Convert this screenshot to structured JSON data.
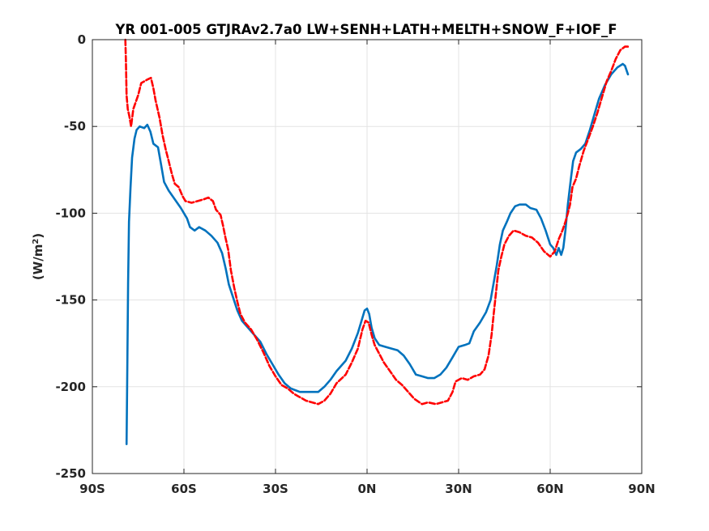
{
  "chart_data": {
    "type": "line",
    "title": "YR 001-005 GTJRAv2.7a0 LW+SENH+LATH+MELTH+SNOW_F+IOF_F",
    "xlabel": "",
    "ylabel_main": "(W/m",
    "ylabel_sup": "2",
    "ylabel_close": ")",
    "xlim": [
      -90,
      90
    ],
    "ylim": [
      -250,
      0
    ],
    "xticks": [
      -90,
      -60,
      -30,
      0,
      30,
      60,
      90
    ],
    "xtick_labels": [
      "90S",
      "60S",
      "30S",
      "0N",
      "30N",
      "60N",
      "90N"
    ],
    "yticks": [
      0,
      -50,
      -100,
      -150,
      -200,
      -250
    ],
    "ytick_labels": [
      "0",
      "-50",
      "-100",
      "-150",
      "-200",
      "-250"
    ],
    "grid": true,
    "series": [
      {
        "color": "#0072BD",
        "style": "solid",
        "points": [
          [
            -78.8,
            -233
          ],
          [
            -78.6,
            -200
          ],
          [
            -78.3,
            -140
          ],
          [
            -78.0,
            -105
          ],
          [
            -77.5,
            -85
          ],
          [
            -77.0,
            -68
          ],
          [
            -76.2,
            -57
          ],
          [
            -75.5,
            -52
          ],
          [
            -74.5,
            -50
          ],
          [
            -73.0,
            -51
          ],
          [
            -72.0,
            -49
          ],
          [
            -71.0,
            -53
          ],
          [
            -70.0,
            -60
          ],
          [
            -68.5,
            -62
          ],
          [
            -67.5,
            -72
          ],
          [
            -66.5,
            -82
          ],
          [
            -65,
            -87
          ],
          [
            -63,
            -92
          ],
          [
            -61,
            -97
          ],
          [
            -59,
            -103
          ],
          [
            -58,
            -108
          ],
          [
            -56.5,
            -110
          ],
          [
            -55,
            -108
          ],
          [
            -53,
            -110
          ],
          [
            -51,
            -113
          ],
          [
            -49,
            -117
          ],
          [
            -47.5,
            -123
          ],
          [
            -46.3,
            -132
          ],
          [
            -45.3,
            -141
          ],
          [
            -44,
            -148
          ],
          [
            -42.5,
            -156
          ],
          [
            -41,
            -162
          ],
          [
            -39,
            -166
          ],
          [
            -37,
            -170
          ],
          [
            -35,
            -174
          ],
          [
            -33,
            -181
          ],
          [
            -31,
            -187
          ],
          [
            -29,
            -193
          ],
          [
            -27,
            -198
          ],
          [
            -25,
            -201
          ],
          [
            -22,
            -203
          ],
          [
            -19,
            -203
          ],
          [
            -16,
            -203
          ],
          [
            -14,
            -200
          ],
          [
            -12,
            -196
          ],
          [
            -10,
            -191
          ],
          [
            -7,
            -185
          ],
          [
            -5,
            -178
          ],
          [
            -3,
            -169
          ],
          [
            -1.8,
            -162
          ],
          [
            -0.8,
            -156
          ],
          [
            0,
            -155
          ],
          [
            0.7,
            -158
          ],
          [
            1.5,
            -166
          ],
          [
            2.5,
            -172
          ],
          [
            4,
            -176
          ],
          [
            6,
            -177
          ],
          [
            8,
            -178
          ],
          [
            10,
            -179
          ],
          [
            12,
            -182
          ],
          [
            14,
            -187
          ],
          [
            16,
            -193
          ],
          [
            18,
            -194
          ],
          [
            20,
            -195
          ],
          [
            22,
            -195
          ],
          [
            24,
            -193
          ],
          [
            26,
            -189
          ],
          [
            28,
            -183
          ],
          [
            30,
            -177
          ],
          [
            32,
            -176
          ],
          [
            33.5,
            -175
          ],
          [
            35,
            -168
          ],
          [
            37,
            -163
          ],
          [
            39,
            -157
          ],
          [
            40.5,
            -150
          ],
          [
            41.5,
            -140
          ],
          [
            42.5,
            -130
          ],
          [
            43.5,
            -118
          ],
          [
            44.5,
            -110
          ],
          [
            45.8,
            -105
          ],
          [
            47,
            -100
          ],
          [
            48.5,
            -96
          ],
          [
            50,
            -95
          ],
          [
            52,
            -95
          ],
          [
            53.5,
            -97
          ],
          [
            55.5,
            -98
          ],
          [
            57,
            -103
          ],
          [
            58.5,
            -110
          ],
          [
            60,
            -118
          ],
          [
            61,
            -120
          ],
          [
            62,
            -124
          ],
          [
            62.8,
            -120
          ],
          [
            63.6,
            -124
          ],
          [
            64.3,
            -120
          ],
          [
            65,
            -110
          ],
          [
            65.8,
            -95
          ],
          [
            66.8,
            -80
          ],
          [
            67.5,
            -70
          ],
          [
            68.5,
            -65
          ],
          [
            70,
            -63
          ],
          [
            71.5,
            -60
          ],
          [
            73,
            -52
          ],
          [
            74.5,
            -43
          ],
          [
            76,
            -34
          ],
          [
            78,
            -26
          ],
          [
            80,
            -20
          ],
          [
            82,
            -16
          ],
          [
            83.8,
            -14
          ],
          [
            84.5,
            -15
          ],
          [
            85.5,
            -20
          ]
        ]
      },
      {
        "color": "#FF0000",
        "style": "dashed",
        "points": [
          [
            -79.2,
            0
          ],
          [
            -79.0,
            -12
          ],
          [
            -78.8,
            -32
          ],
          [
            -78.4,
            -40
          ],
          [
            -77.9,
            -44
          ],
          [
            -77.3,
            -50
          ],
          [
            -76.6,
            -40
          ],
          [
            -75.8,
            -36
          ],
          [
            -75.0,
            -32
          ],
          [
            -74.0,
            -25
          ],
          [
            -73.0,
            -24
          ],
          [
            -72.0,
            -23
          ],
          [
            -70.8,
            -22
          ],
          [
            -70.0,
            -28
          ],
          [
            -69.3,
            -35
          ],
          [
            -68.0,
            -45
          ],
          [
            -67.0,
            -55
          ],
          [
            -66.0,
            -63
          ],
          [
            -65.0,
            -70
          ],
          [
            -64.0,
            -77
          ],
          [
            -63.0,
            -83
          ],
          [
            -61.7,
            -85
          ],
          [
            -60.5,
            -90
          ],
          [
            -59.5,
            -93
          ],
          [
            -57.5,
            -94
          ],
          [
            -55.5,
            -93
          ],
          [
            -53.5,
            -92
          ],
          [
            -52,
            -91
          ],
          [
            -50.5,
            -93
          ],
          [
            -49.5,
            -98
          ],
          [
            -48.0,
            -101
          ],
          [
            -47.2,
            -107
          ],
          [
            -46.4,
            -114
          ],
          [
            -45.5,
            -121
          ],
          [
            -44.6,
            -133
          ],
          [
            -43.5,
            -143
          ],
          [
            -42.5,
            -151
          ],
          [
            -41.5,
            -158
          ],
          [
            -40,
            -163
          ],
          [
            -38,
            -167
          ],
          [
            -36,
            -173
          ],
          [
            -34,
            -180
          ],
          [
            -32,
            -188
          ],
          [
            -30,
            -194
          ],
          [
            -28,
            -199
          ],
          [
            -26,
            -201
          ],
          [
            -24,
            -204
          ],
          [
            -22,
            -206
          ],
          [
            -20,
            -208
          ],
          [
            -18,
            -209
          ],
          [
            -16,
            -210
          ],
          [
            -14,
            -208
          ],
          [
            -12,
            -204
          ],
          [
            -10,
            -198
          ],
          [
            -7,
            -193
          ],
          [
            -5,
            -186
          ],
          [
            -3,
            -178
          ],
          [
            -1.5,
            -167
          ],
          [
            -0.5,
            -162
          ],
          [
            0.5,
            -163
          ],
          [
            1.5,
            -170
          ],
          [
            2.5,
            -176
          ],
          [
            4,
            -181
          ],
          [
            5.5,
            -186
          ],
          [
            7.5,
            -191
          ],
          [
            9.5,
            -196
          ],
          [
            11.5,
            -199
          ],
          [
            13.5,
            -203
          ],
          [
            15.5,
            -207
          ],
          [
            18,
            -210
          ],
          [
            20,
            -209
          ],
          [
            22.5,
            -210
          ],
          [
            24.5,
            -209
          ],
          [
            26.5,
            -208
          ],
          [
            28,
            -203
          ],
          [
            29,
            -197
          ],
          [
            31,
            -195
          ],
          [
            33,
            -196
          ],
          [
            35,
            -194
          ],
          [
            37,
            -193
          ],
          [
            38.5,
            -190
          ],
          [
            39.8,
            -182
          ],
          [
            40.8,
            -170
          ],
          [
            41.5,
            -158
          ],
          [
            42.3,
            -145
          ],
          [
            43,
            -133
          ],
          [
            44,
            -125
          ],
          [
            45,
            -118
          ],
          [
            46.5,
            -113
          ],
          [
            48,
            -110
          ],
          [
            50,
            -111
          ],
          [
            52,
            -113
          ],
          [
            54,
            -114
          ],
          [
            56,
            -117
          ],
          [
            58,
            -122
          ],
          [
            60,
            -125
          ],
          [
            61.5,
            -122
          ],
          [
            62.8,
            -115
          ],
          [
            64,
            -110
          ],
          [
            65,
            -105
          ],
          [
            65.8,
            -100
          ],
          [
            66.5,
            -95
          ],
          [
            67.3,
            -85
          ],
          [
            68.5,
            -80
          ],
          [
            69.5,
            -73
          ],
          [
            71,
            -64
          ],
          [
            72.5,
            -57
          ],
          [
            74,
            -50
          ],
          [
            75.5,
            -42
          ],
          [
            77,
            -33
          ],
          [
            78.5,
            -24
          ],
          [
            80,
            -18
          ],
          [
            81.5,
            -11
          ],
          [
            83,
            -6
          ],
          [
            84.5,
            -4
          ],
          [
            85.5,
            -4
          ]
        ]
      }
    ]
  }
}
